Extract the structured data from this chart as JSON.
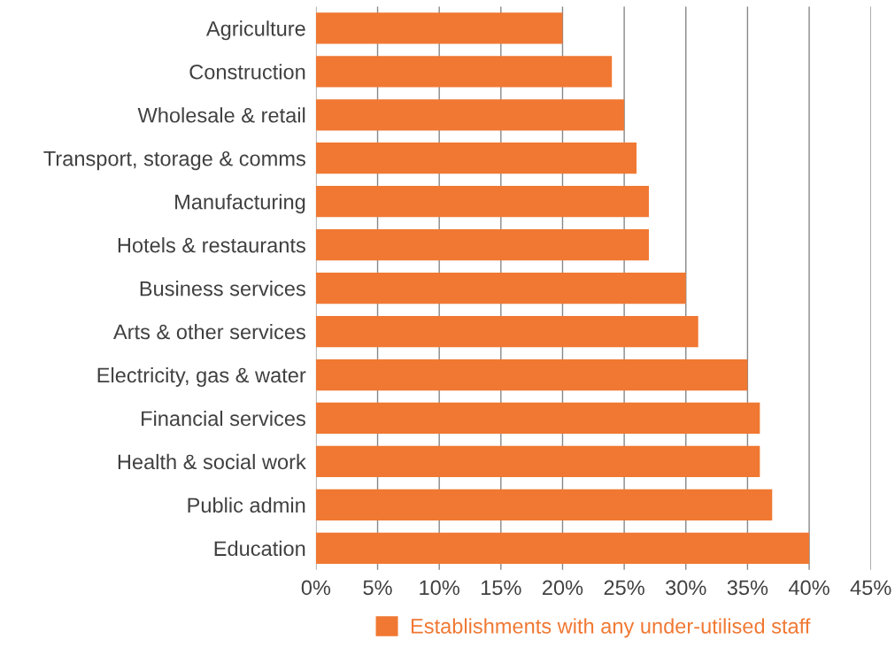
{
  "chart_data": {
    "type": "bar",
    "orientation": "horizontal",
    "categories": [
      "Agriculture",
      "Construction",
      "Wholesale & retail",
      "Transport, storage & comms",
      "Manufacturing",
      "Hotels & restaurants",
      "Business services",
      "Arts & other services",
      "Electricity, gas & water",
      "Financial services",
      "Health & social work",
      "Public admin",
      "Education"
    ],
    "series": [
      {
        "name": "Establishments with any under-utilised staff",
        "color": "#f07832",
        "values": [
          20,
          24,
          25,
          26,
          27,
          27,
          30,
          31,
          35,
          36,
          36,
          37,
          40
        ]
      }
    ],
    "xlim": [
      0,
      45
    ],
    "xticks": [
      {
        "value": 0,
        "label": "0%"
      },
      {
        "value": 5,
        "label": "5%"
      },
      {
        "value": 10,
        "label": "10%"
      },
      {
        "value": 15,
        "label": "15%"
      },
      {
        "value": 20,
        "label": "20%"
      },
      {
        "value": 25,
        "label": "25%"
      },
      {
        "value": 30,
        "label": "30%"
      },
      {
        "value": 35,
        "label": "35%"
      },
      {
        "value": 40,
        "label": "40%"
      },
      {
        "value": 45,
        "label": "45%"
      }
    ],
    "grid": "x",
    "legend": "bottom"
  }
}
